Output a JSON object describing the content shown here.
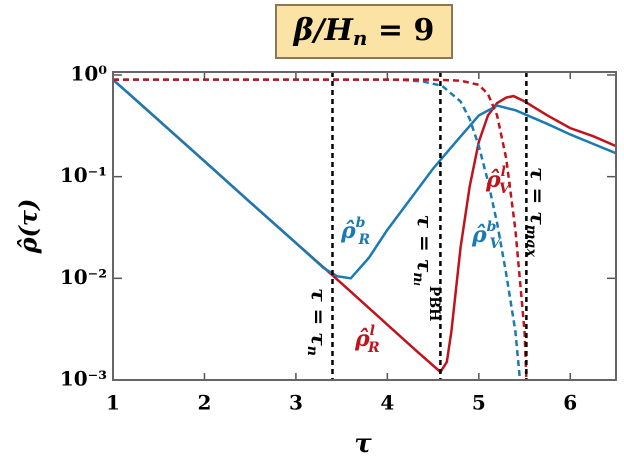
{
  "chart_data": {
    "type": "line",
    "title": {
      "main": "β/H",
      "sub": "n",
      "tail": " = 9"
    },
    "x_label": "τ",
    "y_label": "ρ̂(τ)",
    "xlim": [
      1,
      6.5
    ],
    "xticks": [
      1,
      2,
      3,
      4,
      5,
      6
    ],
    "ylim": [
      0.001,
      1.07
    ],
    "yticks": [
      {
        "value": 1,
        "label": "10⁰"
      },
      {
        "value": 0.1,
        "label": "10⁻¹"
      },
      {
        "value": 0.01,
        "label": "10⁻²"
      },
      {
        "value": 0.001,
        "label": "10⁻³"
      }
    ],
    "log_y": true,
    "series": [
      {
        "color": "#c0141c",
        "dash": false,
        "x": [
          1,
          1.5,
          2,
          2.5,
          3,
          3.5,
          4,
          4.3,
          4.58,
          4.65,
          4.7,
          4.8,
          4.9,
          5.0,
          5.1,
          5.2,
          5.3,
          5.38,
          5.5,
          5.75,
          6,
          6.25,
          6.5
        ],
        "values": [
          0.9,
          0.358,
          0.142,
          0.056,
          0.0223,
          0.0089,
          0.0035,
          0.002,
          0.0012,
          0.0015,
          0.003,
          0.02,
          0.08,
          0.22,
          0.4,
          0.53,
          0.6,
          0.62,
          0.55,
          0.4,
          0.3,
          0.25,
          0.2
        ]
      },
      {
        "color": "#1a7ab2",
        "dash": false,
        "x": [
          1,
          1.5,
          2,
          2.5,
          3,
          3.3,
          3.45,
          3.6,
          3.8,
          4,
          4.25,
          4.5,
          4.75,
          5,
          5.2,
          5.4,
          5.75,
          6,
          6.25,
          6.5
        ],
        "values": [
          0.9,
          0.358,
          0.142,
          0.056,
          0.0223,
          0.0127,
          0.0105,
          0.01,
          0.016,
          0.03,
          0.06,
          0.12,
          0.22,
          0.4,
          0.5,
          0.45,
          0.33,
          0.26,
          0.21,
          0.17
        ]
      },
      {
        "color": "#1a7ab2",
        "dash": true,
        "x": [
          1,
          2,
          3,
          4,
          4.2,
          4.4,
          4.6,
          4.8,
          4.9,
          5.0,
          5.1,
          5.2,
          5.3,
          5.4,
          5.45
        ],
        "values": [
          0.9,
          0.9,
          0.9,
          0.9,
          0.89,
          0.86,
          0.78,
          0.55,
          0.37,
          0.2,
          0.09,
          0.035,
          0.011,
          0.003,
          0.001
        ]
      },
      {
        "color": "#c0141c",
        "dash": true,
        "x": [
          1,
          2,
          3,
          4,
          4.5,
          4.8,
          5.0,
          5.1,
          5.2,
          5.3,
          5.4,
          5.5,
          5.52
        ],
        "values": [
          0.9,
          0.9,
          0.9,
          0.9,
          0.9,
          0.88,
          0.8,
          0.65,
          0.4,
          0.15,
          0.03,
          0.003,
          0.001
        ]
      }
    ],
    "curve_labels": [
      {
        "text": "ρ̂",
        "sub": "R",
        "sup": "b",
        "color": "#1a7ab2"
      },
      {
        "text": "ρ̂",
        "sub": "V",
        "sup": "b",
        "color": "#1a7ab2"
      },
      {
        "text": "ρ̂",
        "sub": "V",
        "sup": "l",
        "color": "#c0141c"
      },
      {
        "text": "ρ̂",
        "sub": "R",
        "sup": "l",
        "color": "#c0141c"
      }
    ],
    "vlines": [
      {
        "x": 3.4,
        "text": "τ = τ",
        "sub": "n"
      },
      {
        "x": 4.58,
        "text": "τ = τ",
        "sub": "nᵢ",
        "sup": "PBH"
      },
      {
        "x": 5.52,
        "text": "τ = τ",
        "sub": "max"
      }
    ]
  }
}
